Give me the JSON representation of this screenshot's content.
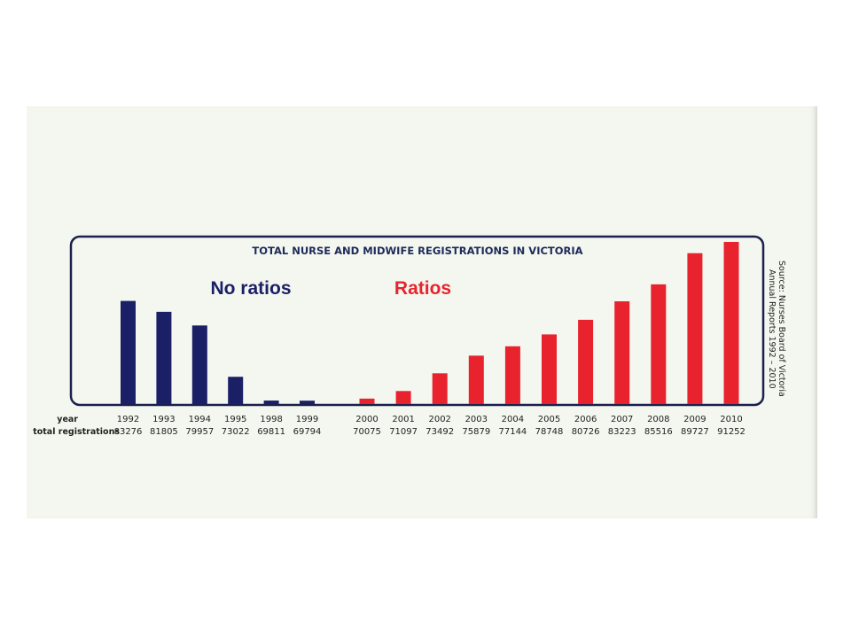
{
  "chart_data": {
    "type": "bar",
    "title": "TOTAL NURSE AND MIDWIFE REGISTRATIONS IN VICTORIA",
    "row_labels": {
      "year": "year",
      "value": "total registrations"
    },
    "groups": [
      {
        "label": "No ratios",
        "color": "#1b1f66"
      },
      {
        "label": "Ratios",
        "color": "#e8232e"
      }
    ],
    "categories": [
      "1992",
      "1993",
      "1994",
      "1995",
      "1998",
      "1999",
      "2000",
      "2001",
      "2002",
      "2003",
      "2004",
      "2005",
      "2006",
      "2007",
      "2008",
      "2009",
      "2010"
    ],
    "series": [
      {
        "values": [
          83276,
          81805,
          79957,
          73022,
          69811,
          69794,
          70075,
          71097,
          73492,
          75879,
          77144,
          78748,
          80726,
          83223,
          85516,
          89727,
          91252
        ],
        "group_of_each": [
          0,
          0,
          0,
          0,
          0,
          0,
          1,
          1,
          1,
          1,
          1,
          1,
          1,
          1,
          1,
          1,
          1
        ]
      }
    ],
    "source_lines": [
      "Source: Nurses Board of Victoria",
      "Annual Reports 1992 – 2010"
    ]
  }
}
